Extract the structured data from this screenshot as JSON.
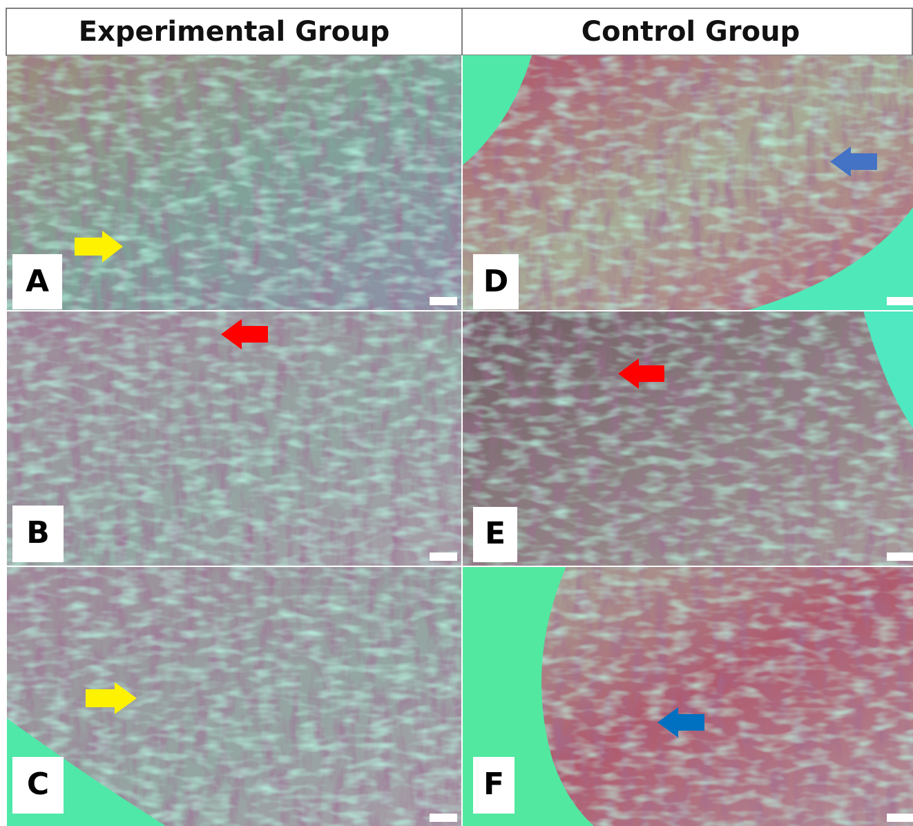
{
  "headers": [
    "Experimental Group",
    "Control Group"
  ],
  "panels": [
    {
      "label": "A"
    },
    {
      "label": "B"
    },
    {
      "label": "C"
    },
    {
      "label": "D"
    },
    {
      "label": "E"
    },
    {
      "label": "F"
    }
  ]
}
